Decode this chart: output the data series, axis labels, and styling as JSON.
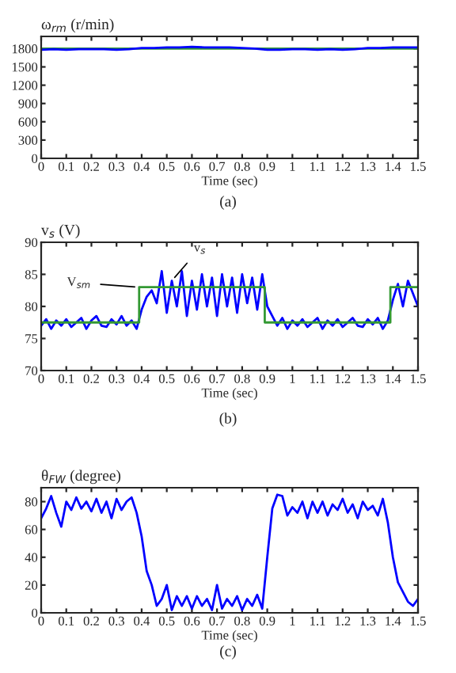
{
  "chart_data": [
    {
      "type": "line",
      "ylabel": "ω$_{rm}$ (r/min)",
      "xlabel": "Time (sec)",
      "annotations": [
        "(a)"
      ],
      "xlim": [
        0,
        1.5
      ],
      "xticks": [
        0,
        0.1,
        0.2,
        0.3,
        0.4,
        0.5,
        0.6,
        0.7,
        0.8,
        0.9,
        1,
        1.1,
        1.2,
        1.3,
        1.4,
        1.5
      ],
      "ylim": [
        0,
        2000
      ],
      "yticks": [
        0,
        300,
        600,
        900,
        1200,
        1500,
        1800
      ],
      "series": [
        {
          "color": "#339933",
          "x": [
            0,
            1.5
          ],
          "values": [
            1800,
            1800
          ]
        },
        {
          "color": "#0000ff",
          "x": [
            0,
            0.05,
            0.1,
            0.15,
            0.2,
            0.25,
            0.3,
            0.35,
            0.4,
            0.45,
            0.5,
            0.55,
            0.6,
            0.65,
            0.7,
            0.75,
            0.8,
            0.85,
            0.9,
            0.95,
            1.0,
            1.05,
            1.1,
            1.15,
            1.2,
            1.25,
            1.3,
            1.35,
            1.4,
            1.45,
            1.5
          ],
          "values": [
            1780,
            1790,
            1780,
            1790,
            1790,
            1790,
            1780,
            1790,
            1810,
            1810,
            1820,
            1820,
            1830,
            1820,
            1820,
            1820,
            1810,
            1800,
            1780,
            1780,
            1790,
            1790,
            1780,
            1790,
            1780,
            1790,
            1810,
            1810,
            1820,
            1820,
            1820
          ]
        }
      ]
    },
    {
      "type": "line",
      "ylabel": "v$_{s}$ (V)",
      "xlabel": "Time (sec)",
      "annotations": [
        "(b)",
        {
          "text": "V$_{sm}$",
          "x": 0.39,
          "y": 83
        },
        {
          "text": "v$_{s}$",
          "x": 0.52,
          "y": 84
        }
      ],
      "xlim": [
        0,
        1.5
      ],
      "xticks": [
        0,
        0.1,
        0.2,
        0.3,
        0.4,
        0.5,
        0.6,
        0.7,
        0.8,
        0.9,
        1,
        1.1,
        1.2,
        1.3,
        1.4,
        1.5
      ],
      "ylim": [
        70,
        90
      ],
      "yticks": [
        70,
        75,
        80,
        85,
        90
      ],
      "series": [
        {
          "color": "#0000ff",
          "x": [
            0,
            0.02,
            0.04,
            0.06,
            0.08,
            0.1,
            0.12,
            0.14,
            0.16,
            0.18,
            0.2,
            0.22,
            0.24,
            0.26,
            0.28,
            0.3,
            0.32,
            0.34,
            0.36,
            0.38,
            0.4,
            0.42,
            0.44,
            0.46,
            0.48,
            0.5,
            0.52,
            0.54,
            0.56,
            0.58,
            0.6,
            0.62,
            0.64,
            0.66,
            0.68,
            0.7,
            0.72,
            0.74,
            0.76,
            0.78,
            0.8,
            0.82,
            0.84,
            0.86,
            0.88,
            0.9,
            0.92,
            0.94,
            0.96,
            0.98,
            1.0,
            1.02,
            1.04,
            1.06,
            1.08,
            1.1,
            1.12,
            1.14,
            1.16,
            1.18,
            1.2,
            1.22,
            1.24,
            1.26,
            1.28,
            1.3,
            1.32,
            1.34,
            1.36,
            1.38,
            1.4,
            1.42,
            1.44,
            1.46,
            1.48,
            1.5
          ],
          "values": [
            77,
            78,
            76.5,
            77.8,
            77,
            78,
            76.8,
            77.5,
            78.2,
            76.5,
            77.8,
            78.5,
            77,
            76.8,
            78,
            77.2,
            78.5,
            77,
            77.8,
            76.5,
            79.5,
            81.5,
            82.5,
            80.5,
            85.5,
            79,
            84,
            80,
            85.5,
            78.5,
            84,
            79.5,
            85,
            80,
            84.5,
            78.5,
            85,
            80,
            84.5,
            79,
            85,
            80.5,
            84.5,
            79.5,
            85,
            80,
            78.5,
            77,
            78.2,
            76.5,
            77.8,
            77,
            78,
            76.8,
            77.5,
            78.2,
            76.5,
            77.8,
            77,
            78,
            76.8,
            77.5,
            78.2,
            77,
            76.8,
            78,
            77.2,
            78.2,
            76.5,
            77.8,
            81,
            83.5,
            80,
            84,
            82,
            80
          ]
        },
        {
          "color": "#339933",
          "x": [
            0,
            0.39,
            0.39,
            0.89,
            0.89,
            1.39,
            1.39,
            1.5
          ],
          "values": [
            77.5,
            77.5,
            83,
            83,
            77.5,
            77.5,
            83,
            83
          ]
        }
      ]
    },
    {
      "type": "line",
      "ylabel": "θ$_{FW}$ (degree)",
      "xlabel": "Time (sec)",
      "annotations": [
        "(c)"
      ],
      "xlim": [
        0,
        1.5
      ],
      "xticks": [
        0,
        0.1,
        0.2,
        0.3,
        0.4,
        0.5,
        0.6,
        0.7,
        0.8,
        0.9,
        1,
        1.1,
        1.2,
        1.3,
        1.4,
        1.5
      ],
      "ylim": [
        0,
        90
      ],
      "yticks": [
        0,
        20,
        40,
        60,
        80
      ],
      "series": [
        {
          "color": "#0000ff",
          "x": [
            0,
            0.02,
            0.04,
            0.06,
            0.08,
            0.1,
            0.12,
            0.14,
            0.16,
            0.18,
            0.2,
            0.22,
            0.24,
            0.26,
            0.28,
            0.3,
            0.32,
            0.34,
            0.36,
            0.38,
            0.4,
            0.42,
            0.44,
            0.46,
            0.48,
            0.5,
            0.52,
            0.54,
            0.56,
            0.58,
            0.6,
            0.62,
            0.64,
            0.66,
            0.68,
            0.7,
            0.72,
            0.74,
            0.76,
            0.78,
            0.8,
            0.82,
            0.84,
            0.86,
            0.88,
            0.9,
            0.92,
            0.94,
            0.96,
            0.98,
            1.0,
            1.02,
            1.04,
            1.06,
            1.08,
            1.1,
            1.12,
            1.14,
            1.16,
            1.18,
            1.2,
            1.22,
            1.24,
            1.26,
            1.28,
            1.3,
            1.32,
            1.34,
            1.36,
            1.38,
            1.4,
            1.42,
            1.44,
            1.46,
            1.48,
            1.5
          ],
          "values": [
            68,
            75,
            84,
            72,
            62,
            80,
            74,
            83,
            75,
            80,
            73,
            82,
            72,
            80,
            68,
            82,
            74,
            80,
            83,
            72,
            55,
            30,
            20,
            5,
            10,
            20,
            2,
            12,
            5,
            12,
            3,
            12,
            5,
            10,
            2,
            20,
            3,
            10,
            5,
            12,
            2,
            10,
            5,
            13,
            3,
            40,
            75,
            85,
            84,
            70,
            76,
            72,
            80,
            68,
            80,
            72,
            80,
            70,
            78,
            74,
            82,
            72,
            78,
            68,
            80,
            74,
            77,
            70,
            82,
            65,
            40,
            22,
            15,
            8,
            5,
            10
          ]
        }
      ]
    }
  ]
}
